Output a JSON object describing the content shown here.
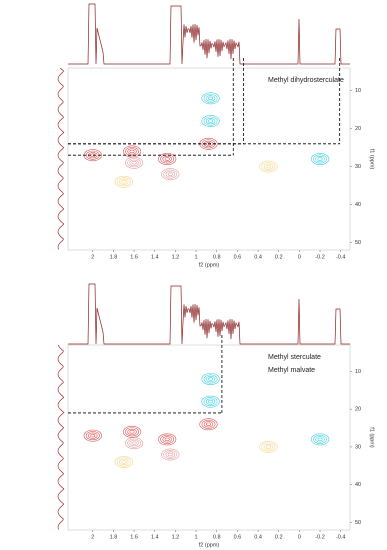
{
  "chart_data": [
    {
      "type": "nmr2d",
      "xlabel": "f2 (ppm)",
      "ylabel": "f1 (ppm)",
      "xlim": [
        2.24,
        -0.49
      ],
      "xticks": [
        2.0,
        1.8,
        1.6,
        1.4,
        1.2,
        1.0,
        0.8,
        0.6,
        0.4,
        0.2,
        0,
        -0.2,
        -0.4
      ],
      "ylim": [
        4,
        52
      ],
      "yticks": [
        10,
        20,
        30,
        40,
        50
      ],
      "annotations": [
        "Methyl dihydrosterculate"
      ],
      "guides": [
        {
          "x": 0.64,
          "y": 27
        },
        {
          "x": 0.54,
          "y": 24
        },
        {
          "x": -0.39,
          "y": 24
        }
      ],
      "peaks": [
        {
          "x": 2.0,
          "y": 27,
          "color": "#e05050"
        },
        {
          "x": 1.62,
          "y": 26,
          "color": "#e05050"
        },
        {
          "x": 1.6,
          "y": 29,
          "color": "#e0a0a0"
        },
        {
          "x": 1.28,
          "y": 28,
          "color": "#e05050"
        },
        {
          "x": 1.25,
          "y": 32,
          "color": "#e0a0a0"
        },
        {
          "x": 0.88,
          "y": 24,
          "color": "#e05050"
        },
        {
          "x": 0.86,
          "y": 18,
          "color": "#40d0e0"
        },
        {
          "x": 0.86,
          "y": 12,
          "color": "#40d0e0"
        },
        {
          "x": -0.2,
          "y": 28,
          "color": "#40d0e0"
        },
        {
          "x": 0.3,
          "y": 30,
          "color": "#f0d890"
        },
        {
          "x": 1.7,
          "y": 34,
          "color": "#f0d890"
        }
      ]
    },
    {
      "type": "nmr2d",
      "xlabel": "f2 (ppm)",
      "ylabel": "f1 (ppm)",
      "xlim": [
        2.24,
        -0.49
      ],
      "xticks": [
        2.0,
        1.8,
        1.6,
        1.4,
        1.2,
        1.0,
        0.8,
        0.6,
        0.4,
        0.2,
        0,
        -0.2,
        -0.4
      ],
      "ylim": [
        3,
        52
      ],
      "yticks": [
        10,
        20,
        30,
        40,
        50
      ],
      "annotations": [
        "Methyl sterculate",
        "Methyl malvate"
      ],
      "guides": [
        {
          "x": 0.75,
          "y": 21
        }
      ],
      "peaks": [
        {
          "x": 2.0,
          "y": 27,
          "color": "#e05050"
        },
        {
          "x": 1.62,
          "y": 26,
          "color": "#e05050"
        },
        {
          "x": 1.6,
          "y": 29,
          "color": "#e0a0a0"
        },
        {
          "x": 1.28,
          "y": 28,
          "color": "#e05050"
        },
        {
          "x": 1.25,
          "y": 32,
          "color": "#e0a0a0"
        },
        {
          "x": 0.88,
          "y": 24,
          "color": "#e05050"
        },
        {
          "x": 0.86,
          "y": 18,
          "color": "#40d0e0"
        },
        {
          "x": 0.86,
          "y": 12,
          "color": "#40d0e0"
        },
        {
          "x": -0.2,
          "y": 28,
          "color": "#40d0e0"
        },
        {
          "x": 0.3,
          "y": 30,
          "color": "#f0d890"
        },
        {
          "x": 1.7,
          "y": 34,
          "color": "#f0d890"
        }
      ]
    }
  ]
}
